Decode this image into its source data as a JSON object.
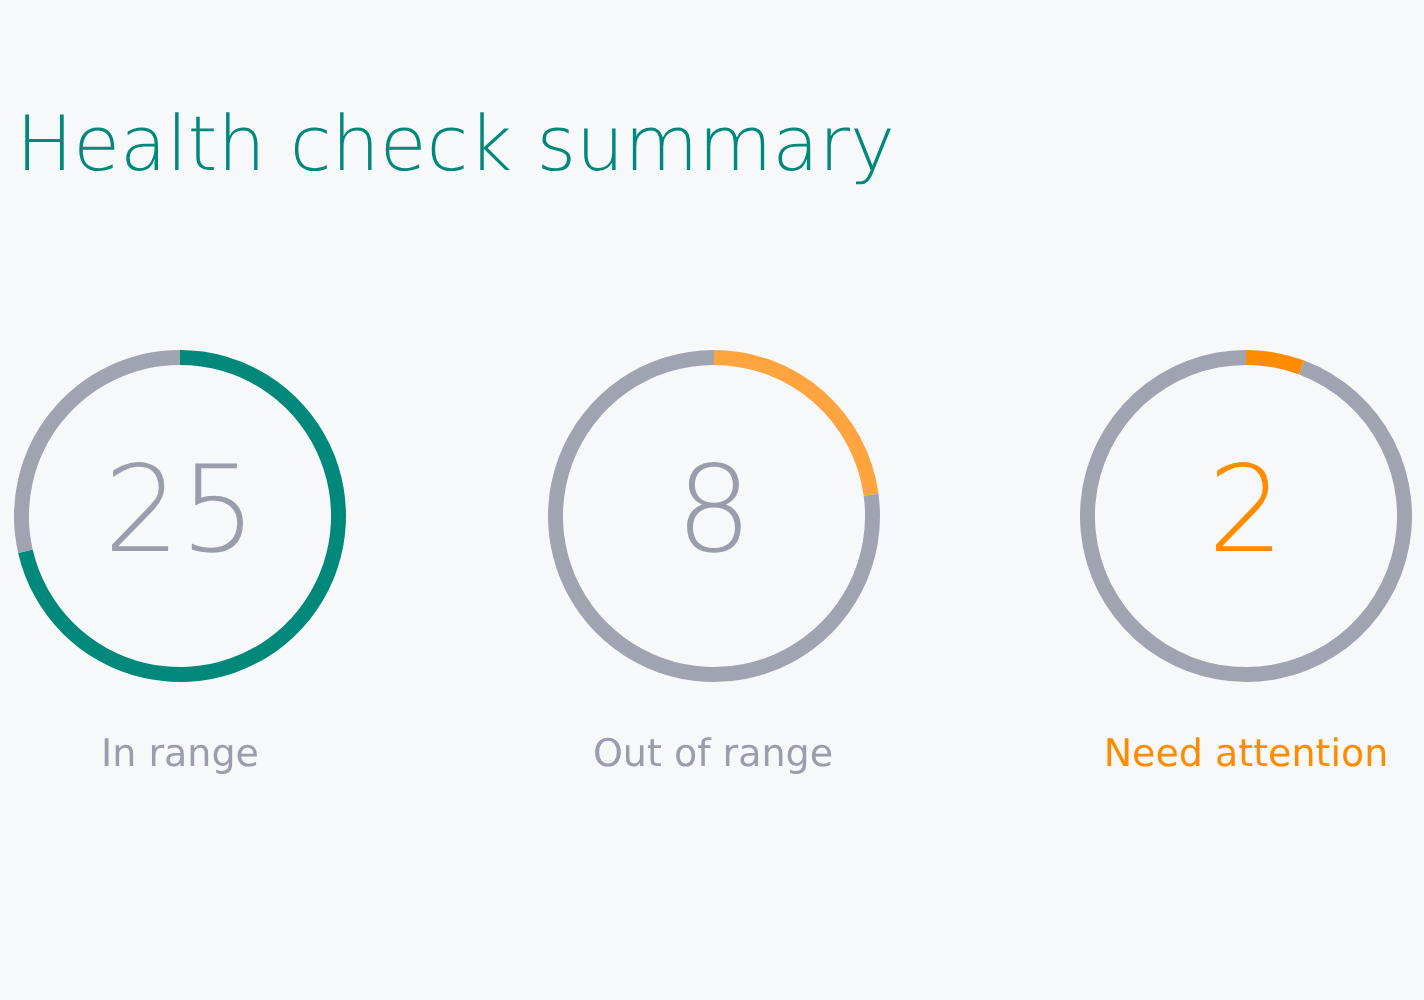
{
  "chart_data": [
    {
      "type": "donut",
      "title": "Health check summary",
      "xlabel": "In range",
      "categories": [
        null,
        null
      ],
      "values": [
        25,
        10
      ],
      "colors": [
        "#00897b",
        "#a0a3b0"
      ],
      "value_labels": [
        "25",
        null
      ]
    },
    {
      "type": "donut",
      "xlabel": "Out of range",
      "categories": [
        null,
        null
      ],
      "values": [
        8,
        27
      ],
      "colors": [
        "#ffa43f",
        "#a0a3b0"
      ],
      "value_labels": [
        "8",
        null
      ]
    },
    {
      "type": "donut",
      "xlabel": "Need attention",
      "categories": [
        null,
        null
      ],
      "values": [
        2,
        33
      ],
      "colors": [
        "#ff8c00",
        "#a0a3b0"
      ],
      "value_labels": [
        "2",
        null
      ]
    }
  ]
}
